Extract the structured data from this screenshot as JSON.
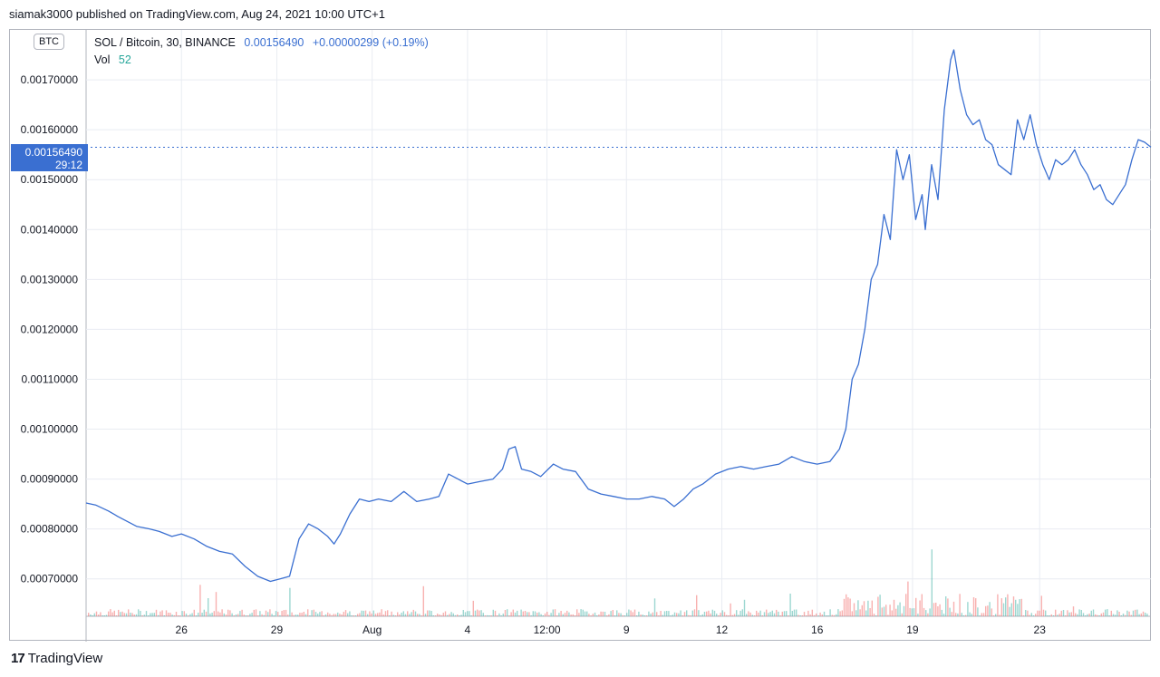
{
  "header": {
    "published": "siamak3000 published on TradingView.com, Aug 24, 2021 10:00 UTC+1"
  },
  "legend": {
    "symbol": "SOL / Bitcoin, 30, BINANCE",
    "last": "0.00156490",
    "change": "+0.00000299 (+0.19%)",
    "vol_label": "Vol",
    "vol_value": "52"
  },
  "currency_badge": "BTC",
  "price_tag": {
    "price": "0.00156490",
    "countdown": "29:12"
  },
  "brand": {
    "name": "TradingView",
    "logo": "17"
  },
  "colors": {
    "line": "#3a6fd1",
    "vol_up": "#26a69a",
    "vol_down": "#ef5350",
    "grid": "#e9ecf2"
  },
  "chart_data": {
    "type": "line",
    "series": [
      {
        "name": "SOL / Bitcoin, 30, BINANCE",
        "values": [
          [
            23.0,
            0.000852
          ],
          [
            23.3,
            0.000848
          ],
          [
            23.7,
            0.000836
          ],
          [
            24.0,
            0.000825
          ],
          [
            24.3,
            0.000815
          ],
          [
            24.6,
            0.000805
          ],
          [
            25.0,
            0.0008
          ],
          [
            25.3,
            0.000795
          ],
          [
            25.7,
            0.000785
          ],
          [
            26.0,
            0.00079
          ],
          [
            26.4,
            0.00078
          ],
          [
            26.8,
            0.000765
          ],
          [
            27.2,
            0.000755
          ],
          [
            27.6,
            0.00075
          ],
          [
            28.0,
            0.000725
          ],
          [
            28.4,
            0.000705
          ],
          [
            28.8,
            0.000695
          ],
          [
            29.1,
            0.0007
          ],
          [
            29.4,
            0.000705
          ],
          [
            29.7,
            0.00078
          ],
          [
            30.0,
            0.00081
          ],
          [
            30.3,
            0.0008
          ],
          [
            30.6,
            0.000785
          ],
          [
            30.8,
            0.00077
          ],
          [
            31.0,
            0.00079
          ],
          [
            31.3,
            0.00083
          ],
          [
            31.6,
            0.00086
          ],
          [
            31.9,
            0.000855
          ],
          [
            32.2,
            0.00086
          ],
          [
            32.6,
            0.000855
          ],
          [
            33.0,
            0.000875
          ],
          [
            33.4,
            0.000855
          ],
          [
            33.8,
            0.00086
          ],
          [
            34.1,
            0.000865
          ],
          [
            34.4,
            0.00091
          ],
          [
            34.7,
            0.0009
          ],
          [
            35.0,
            0.00089
          ],
          [
            35.4,
            0.000895
          ],
          [
            35.8,
            0.0009
          ],
          [
            36.1,
            0.00092
          ],
          [
            36.3,
            0.00096
          ],
          [
            36.5,
            0.000965
          ],
          [
            36.7,
            0.00092
          ],
          [
            37.0,
            0.000915
          ],
          [
            37.3,
            0.000905
          ],
          [
            37.7,
            0.00093
          ],
          [
            38.0,
            0.00092
          ],
          [
            38.4,
            0.000915
          ],
          [
            38.8,
            0.00088
          ],
          [
            39.2,
            0.00087
          ],
          [
            39.6,
            0.000865
          ],
          [
            40.0,
            0.00086
          ],
          [
            40.4,
            0.00086
          ],
          [
            40.8,
            0.000865
          ],
          [
            41.2,
            0.00086
          ],
          [
            41.5,
            0.000845
          ],
          [
            41.8,
            0.00086
          ],
          [
            42.1,
            0.00088
          ],
          [
            42.4,
            0.00089
          ],
          [
            42.8,
            0.00091
          ],
          [
            43.2,
            0.00092
          ],
          [
            43.6,
            0.000925
          ],
          [
            44.0,
            0.00092
          ],
          [
            44.4,
            0.000925
          ],
          [
            44.8,
            0.00093
          ],
          [
            45.2,
            0.000945
          ],
          [
            45.6,
            0.000935
          ],
          [
            46.0,
            0.00093
          ],
          [
            46.4,
            0.000935
          ],
          [
            46.7,
            0.00096
          ],
          [
            46.9,
            0.001
          ],
          [
            47.1,
            0.0011
          ],
          [
            47.3,
            0.00113
          ],
          [
            47.5,
            0.0012
          ],
          [
            47.7,
            0.0013
          ],
          [
            47.9,
            0.00133
          ],
          [
            48.1,
            0.00143
          ],
          [
            48.3,
            0.00138
          ],
          [
            48.5,
            0.00156
          ],
          [
            48.7,
            0.0015
          ],
          [
            48.9,
            0.00155
          ],
          [
            49.1,
            0.00142
          ],
          [
            49.3,
            0.00147
          ],
          [
            49.4,
            0.0014
          ],
          [
            49.6,
            0.00153
          ],
          [
            49.8,
            0.00146
          ],
          [
            50.0,
            0.00164
          ],
          [
            50.2,
            0.00174
          ],
          [
            50.3,
            0.00176
          ],
          [
            50.5,
            0.00168
          ],
          [
            50.7,
            0.00163
          ],
          [
            50.9,
            0.00161
          ],
          [
            51.1,
            0.00162
          ],
          [
            51.3,
            0.00158
          ],
          [
            51.5,
            0.00157
          ],
          [
            51.7,
            0.00153
          ],
          [
            51.9,
            0.00152
          ],
          [
            52.1,
            0.00151
          ],
          [
            52.3,
            0.00162
          ],
          [
            52.5,
            0.00158
          ],
          [
            52.7,
            0.00163
          ],
          [
            52.9,
            0.00157
          ],
          [
            53.1,
            0.00153
          ],
          [
            53.3,
            0.0015
          ],
          [
            53.5,
            0.00154
          ],
          [
            53.7,
            0.00153
          ],
          [
            53.9,
            0.00154
          ],
          [
            54.1,
            0.00156
          ],
          [
            54.3,
            0.00153
          ],
          [
            54.5,
            0.00151
          ],
          [
            54.7,
            0.00148
          ],
          [
            54.9,
            0.00149
          ],
          [
            55.1,
            0.00146
          ],
          [
            55.3,
            0.00145
          ],
          [
            55.5,
            0.00147
          ],
          [
            55.7,
            0.00149
          ],
          [
            55.9,
            0.00154
          ],
          [
            56.1,
            0.00158
          ],
          [
            56.3,
            0.001575
          ],
          [
            56.5,
            0.001565
          ]
        ]
      }
    ],
    "x_ticks": [
      {
        "x": 26,
        "label": "26"
      },
      {
        "x": 29,
        "label": "29"
      },
      {
        "x": 32,
        "label": "Aug"
      },
      {
        "x": 35,
        "label": "4"
      },
      {
        "x": 37.5,
        "label": "12:00"
      },
      {
        "x": 40,
        "label": "9"
      },
      {
        "x": 43,
        "label": "12"
      },
      {
        "x": 46,
        "label": "16"
      },
      {
        "x": 49,
        "label": "19"
      },
      {
        "x": 53,
        "label": "23"
      }
    ],
    "y_ticks": [
      "0.00070000",
      "0.00080000",
      "0.00090000",
      "0.00100000",
      "0.00110000",
      "0.00120000",
      "0.00130000",
      "0.00140000",
      "0.00150000",
      "0.00160000",
      "0.00170000"
    ],
    "ylim": [
      0.000625,
      0.0018
    ],
    "grid": true,
    "last_price": 0.0015649
  }
}
